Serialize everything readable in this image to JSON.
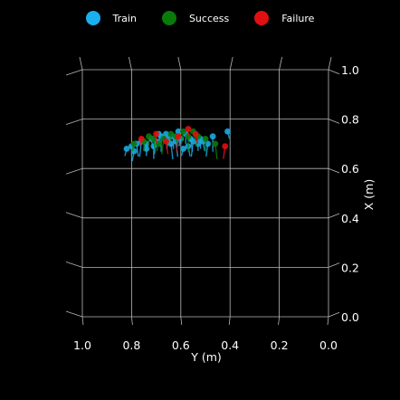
{
  "chart_data": {
    "type": "scatter",
    "projection": "3d-top-down",
    "background": "#000000",
    "grid": true,
    "legend_placement": "top-center",
    "xlabel": "Y (m)",
    "ylabel": "X (m)",
    "xlim": [
      1.0,
      0.0
    ],
    "ylim": [
      0.0,
      1.0
    ],
    "x_ticks": [
      "1.0",
      "0.8",
      "0.6",
      "0.4",
      "0.2",
      "0.0"
    ],
    "y_ticks": [
      "0.0",
      "0.2",
      "0.4",
      "0.6",
      "0.8",
      "1.0"
    ],
    "x_tick_values": [
      1.0,
      0.8,
      0.6,
      0.4,
      0.2,
      0.0
    ],
    "y_tick_values": [
      0.0,
      0.2,
      0.4,
      0.6,
      0.8,
      1.0
    ],
    "series": [
      {
        "name": "Train",
        "color": "#1aa9e0",
        "points": [
          [
            0.82,
            0.68
          ],
          [
            0.8,
            0.69
          ],
          [
            0.78,
            0.7
          ],
          [
            0.76,
            0.71
          ],
          [
            0.74,
            0.7
          ],
          [
            0.72,
            0.72
          ],
          [
            0.7,
            0.71
          ],
          [
            0.68,
            0.73
          ],
          [
            0.66,
            0.74
          ],
          [
            0.65,
            0.72
          ],
          [
            0.63,
            0.73
          ],
          [
            0.62,
            0.71
          ],
          [
            0.6,
            0.72
          ],
          [
            0.58,
            0.74
          ],
          [
            0.56,
            0.72
          ],
          [
            0.55,
            0.71
          ],
          [
            0.53,
            0.7
          ],
          [
            0.51,
            0.71
          ],
          [
            0.49,
            0.7
          ],
          [
            0.47,
            0.73
          ],
          [
            0.41,
            0.75
          ],
          [
            0.79,
            0.67
          ],
          [
            0.71,
            0.69
          ],
          [
            0.64,
            0.7
          ],
          [
            0.59,
            0.68
          ],
          [
            0.52,
            0.72
          ],
          [
            0.69,
            0.74
          ],
          [
            0.61,
            0.75
          ],
          [
            0.74,
            0.68
          ],
          [
            0.57,
            0.69
          ]
        ]
      },
      {
        "name": "Success",
        "color": "#0a7a0a",
        "points": [
          [
            0.79,
            0.7
          ],
          [
            0.75,
            0.71
          ],
          [
            0.71,
            0.72
          ],
          [
            0.67,
            0.72
          ],
          [
            0.64,
            0.74
          ],
          [
            0.62,
            0.73
          ],
          [
            0.59,
            0.75
          ],
          [
            0.57,
            0.73
          ],
          [
            0.55,
            0.75
          ],
          [
            0.53,
            0.73
          ],
          [
            0.5,
            0.72
          ],
          [
            0.46,
            0.7
          ],
          [
            0.69,
            0.7
          ],
          [
            0.73,
            0.73
          ]
        ]
      },
      {
        "name": "Failure",
        "color": "#e01010",
        "points": [
          [
            0.76,
            0.72
          ],
          [
            0.7,
            0.74
          ],
          [
            0.66,
            0.71
          ],
          [
            0.61,
            0.73
          ],
          [
            0.57,
            0.76
          ],
          [
            0.54,
            0.74
          ],
          [
            0.42,
            0.69
          ]
        ]
      }
    ]
  }
}
